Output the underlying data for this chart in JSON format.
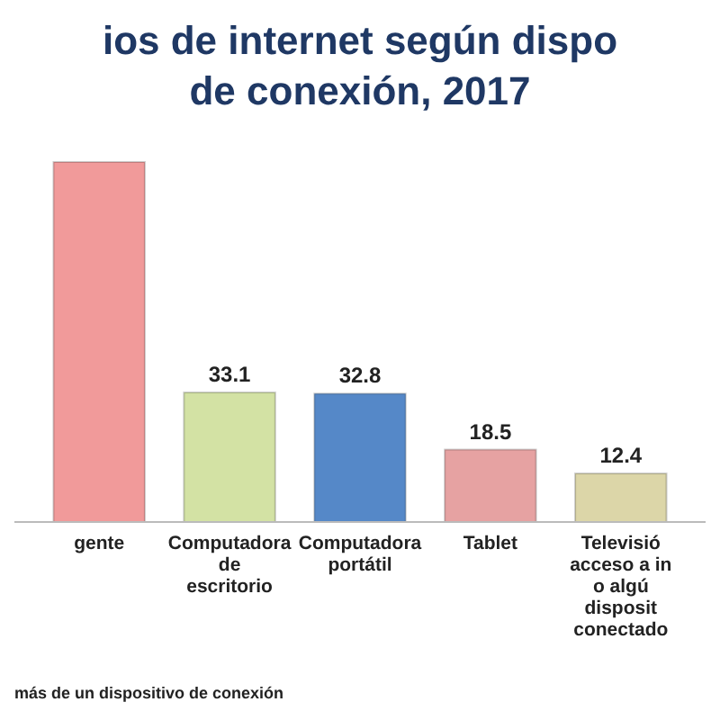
{
  "chart_data": {
    "type": "bar",
    "title": "ios de internet según dispo de conexión, 2017",
    "categories": [
      "gente",
      "Computadora de escritorio",
      "Computadora portátil",
      "Tablet",
      "Televisió acceso a in o algú disposit conectado"
    ],
    "values": [
      92,
      33.1,
      32.8,
      18.5,
      12.4
    ],
    "colors": [
      "#f19a9a",
      "#d3e2a4",
      "#5588c8",
      "#e6a2a2",
      "#dcd6a8"
    ],
    "value_labels": [
      null,
      "33.1",
      "32.8",
      "18.5",
      "12.4"
    ],
    "annotations": [
      "más de un dispositivo de conexión"
    ]
  }
}
